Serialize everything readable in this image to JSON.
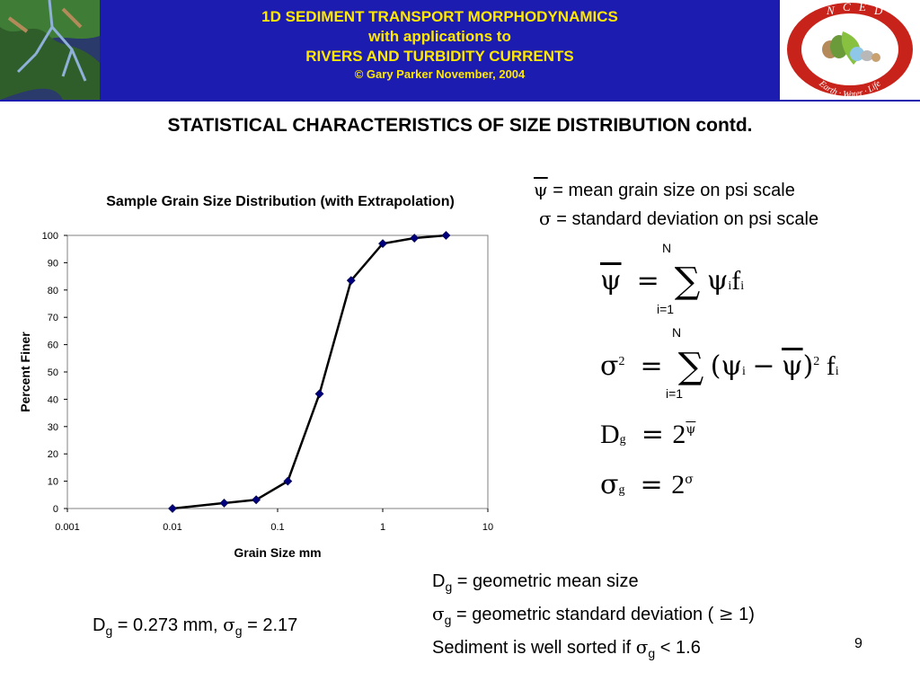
{
  "header": {
    "line1": "1D SEDIMENT TRANSPORT MORPHODYNAMICS",
    "line2": "with applications to",
    "line3": "RIVERS AND TURBIDITY CURRENTS",
    "copyright": "© Gary Parker November, 2004",
    "logo_letters": [
      "N",
      "C",
      "E",
      "D"
    ],
    "logo_ring_text": "Earth · Water · Life"
  },
  "slide_title": "STATISTICAL CHARACTERISTICS OF SIZE DISTRIBUTION contd.",
  "chart_data": {
    "type": "scatter",
    "title": "Sample Grain Size Distribution (with Extrapolation)",
    "xlabel": "Grain Size mm",
    "ylabel": "Percent Finer",
    "x_scale": "log",
    "xlim": [
      0.001,
      10
    ],
    "ylim": [
      0,
      100
    ],
    "x_ticks": [
      "0.001",
      "0.01",
      "0.1",
      "1",
      "10"
    ],
    "y_ticks": [
      "0",
      "10",
      "20",
      "30",
      "40",
      "50",
      "60",
      "70",
      "80",
      "90",
      "100"
    ],
    "series": [
      {
        "x": [
          0.01,
          0.031,
          0.0625,
          0.125,
          0.25,
          0.5,
          1,
          2,
          4
        ],
        "y": [
          0,
          2,
          3.2,
          10,
          42,
          83.5,
          97,
          99,
          100
        ]
      }
    ],
    "color": "#00007f",
    "grid": false
  },
  "definitions": {
    "mean": "= mean grain size on psi scale",
    "std": "= standard deviation on psi scale"
  },
  "formula_labels": {
    "upper": "N",
    "lower": "i=1",
    "dg_lhs": "D",
    "g": "g",
    "two": "2",
    "sq": "2",
    "f": "f",
    "i": "i"
  },
  "result": {
    "dg_text": " = 0.273 mm, ",
    "sg_text": " = 2.17"
  },
  "notes": {
    "line1": " = geometric mean size",
    "line2a": " = geometric standard deviation ( ",
    "line2b": " 1)",
    "line3": "Sediment is well sorted if "
  },
  "page_number": "9"
}
